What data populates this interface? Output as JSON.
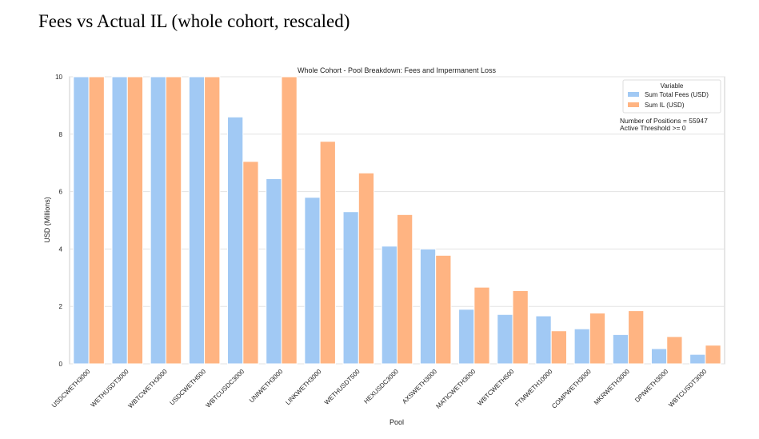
{
  "page": {
    "title": "Fees vs Actual IL (whole cohort, rescaled)"
  },
  "chart_data": {
    "type": "bar",
    "title": "Whole Cohort - Pool Breakdown: Fees and Impermanent Loss",
    "xlabel": "Pool",
    "ylabel": "USD (Millions)",
    "ylim": [
      0,
      10
    ],
    "yticks": [
      0,
      2,
      4,
      6,
      8,
      10
    ],
    "grid": true,
    "legend_position": "top-right",
    "legend_title": "Variable",
    "categories": [
      "USDCWETH3000",
      "WETHUSDT3000",
      "WBTCWETH3000",
      "USDCWETH500",
      "WBTCUSDC3000",
      "UNIWETH3000",
      "LINKWETH3000",
      "WETHUSDT500",
      "HEXUSDC3000",
      "AXSWETH3000",
      "MATICWETH3000",
      "WBTCWETH500",
      "FTMWETH10000",
      "COMPWETH3000",
      "MKRWETH3000",
      "DPIWETH3000",
      "WBTCUSDT3000"
    ],
    "series": [
      {
        "name": "Sum Total Fees (USD)",
        "color": "#a1c9f4",
        "values": [
          10,
          10,
          10,
          10,
          8.6,
          6.45,
          5.8,
          5.3,
          4.1,
          4.0,
          1.9,
          1.72,
          1.67,
          1.22,
          1.02,
          0.53,
          0.33
        ]
      },
      {
        "name": "Sum IL (USD)",
        "color": "#ffb482",
        "values": [
          10,
          10,
          10,
          10,
          7.05,
          10,
          7.75,
          6.65,
          5.2,
          3.78,
          2.67,
          2.55,
          1.15,
          1.77,
          1.85,
          0.95,
          0.65
        ]
      }
    ],
    "annotations": [
      "Number of Positions = 55947",
      "Active Threshold >= 0"
    ]
  }
}
